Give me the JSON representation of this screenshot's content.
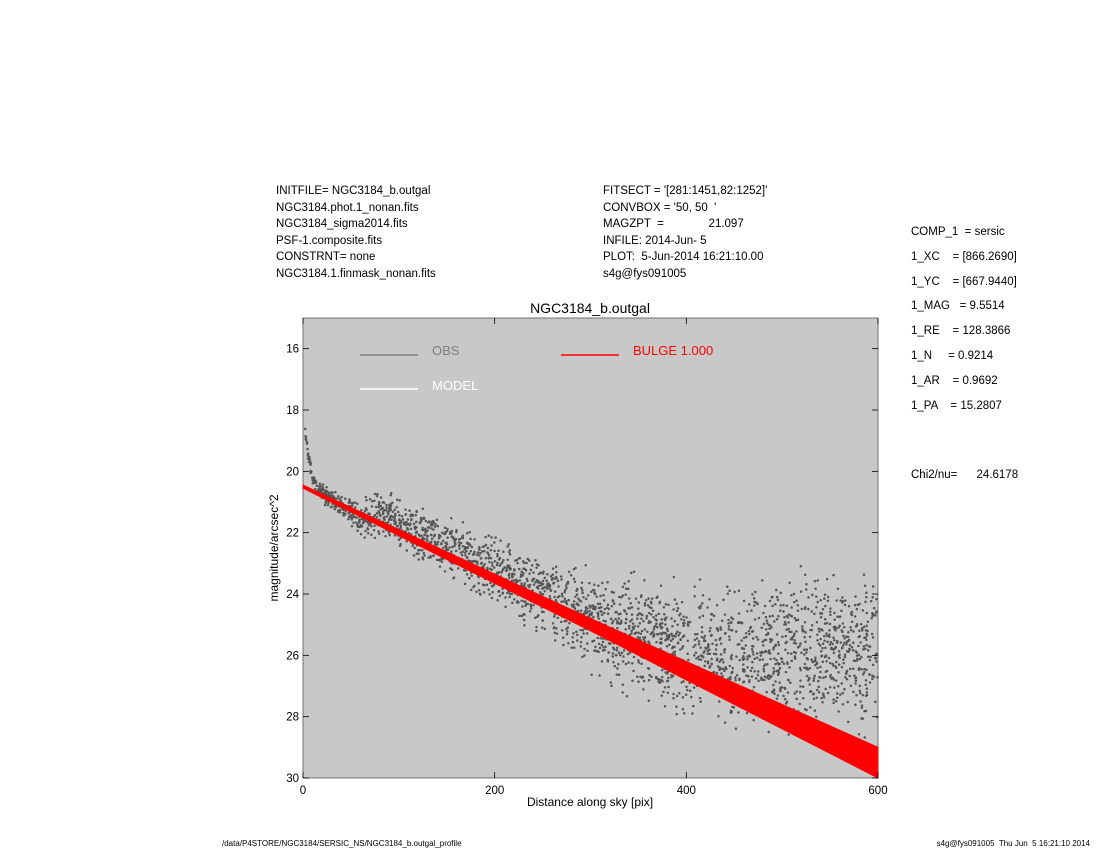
{
  "header_left": [
    "INITFILE= NGC3184_b.outgal",
    "NGC3184.phot.1_nonan.fits",
    "NGC3184_sigma2014.fits",
    "PSF-1.composite.fits",
    "CONSTRNT= none",
    "NGC3184.1.finmask_nonan.fits"
  ],
  "header_mid": [
    "FITSECT = '[281:1451,82:1252]'",
    "CONVBOX = '50, 50  '",
    "MAGZPT  =              21.097",
    "INFILE: 2014-Jun- 5",
    "PLOT:  5-Jun-2014 16:21:10.00",
    "s4g@fys091005"
  ],
  "params": [
    "COMP_1  = sersic",
    "1_XC    = [866.2690]",
    "1_YC    = [667.9440]",
    "1_MAG   = 9.5514",
    "1_RE    = 128.3866",
    "1_N     = 0.9214",
    "1_AR    = 0.9692",
    "1_PA    = 15.2807"
  ],
  "chi": "Chi2/nu=      24.6178",
  "footer_left": "/data/P4STORE/NGC3184/SERSIC_NS/NGC3184_b.outgal_profile",
  "footer_right": "s4g@fys091005  Thu Jun  5 16:21:10 2014",
  "chart_data": {
    "type": "scatter",
    "title": "NGC3184_b.outgal",
    "xlabel": "Distance along sky [pix]",
    "ylabel": "magnitude/arcsec^2",
    "xlim": [
      0,
      600
    ],
    "ylim": [
      30,
      15
    ],
    "xticks": [
      0,
      200,
      400,
      600
    ],
    "yticks": [
      16,
      18,
      20,
      22,
      24,
      26,
      28,
      30
    ],
    "plot_background": "#c8c8c8",
    "legend": [
      {
        "label": "OBS",
        "color": "#7f7f7f"
      },
      {
        "label": "MODEL",
        "color": "#ffffff"
      },
      {
        "label": "BULGE  1.000",
        "color": "#ff0000"
      }
    ],
    "series": [
      {
        "name": "OBS",
        "color": "#555555",
        "x": [
          2,
          5,
          8,
          10,
          12,
          15,
          20,
          25,
          30,
          40,
          50,
          60,
          70,
          80,
          90,
          100,
          120,
          140,
          160,
          180,
          200,
          220,
          250,
          280,
          300,
          330,
          360,
          400,
          440,
          480,
          520,
          560,
          600
        ],
        "y": [
          18.6,
          19.4,
          19.9,
          20.2,
          20.4,
          20.55,
          20.7,
          20.8,
          20.9,
          21.1,
          21.3,
          21.5,
          21.5,
          21.4,
          21.5,
          21.7,
          22.0,
          22.3,
          22.6,
          22.9,
          23.2,
          23.5,
          24.0,
          24.5,
          24.8,
          25.2,
          25.5,
          25.9,
          26.0,
          26.1,
          26.0,
          25.9,
          25.8
        ],
        "spread": [
          0.1,
          0.15,
          0.15,
          0.15,
          0.15,
          0.15,
          0.2,
          0.2,
          0.25,
          0.3,
          0.35,
          0.4,
          0.45,
          0.45,
          0.5,
          0.5,
          0.55,
          0.6,
          0.6,
          0.65,
          0.7,
          0.7,
          0.8,
          0.9,
          1.0,
          1.1,
          1.2,
          1.3,
          1.4,
          1.5,
          1.6,
          1.6,
          1.7
        ]
      },
      {
        "name": "BULGE  1.000",
        "color": "#ff0000",
        "x": [
          0,
          100,
          200,
          300,
          400,
          500,
          600
        ],
        "y": [
          20.5,
          22.0,
          23.5,
          25.0,
          26.5,
          28.0,
          29.5
        ],
        "band_width": [
          0.05,
          0.1,
          0.15,
          0.2,
          0.3,
          0.4,
          0.5
        ]
      }
    ]
  }
}
